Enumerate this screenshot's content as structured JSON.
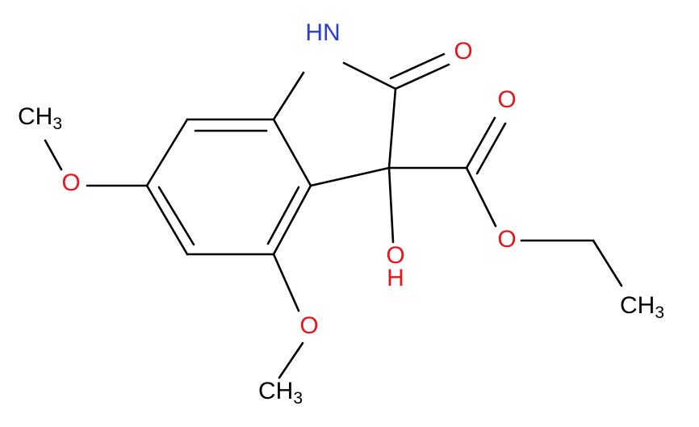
{
  "atoms": [
    {
      "label": "HN"
    },
    {
      "label": "O"
    },
    {
      "label": "O"
    },
    {
      "label": "O"
    },
    {
      "label": "O"
    },
    {
      "label": "H"
    },
    {
      "label": "O"
    },
    {
      "label": "O"
    },
    {
      "label": "CH",
      "subscript": "3"
    },
    {
      "label": "CH",
      "subscript": "3"
    },
    {
      "label": "CH",
      "subscript": "3"
    }
  ]
}
